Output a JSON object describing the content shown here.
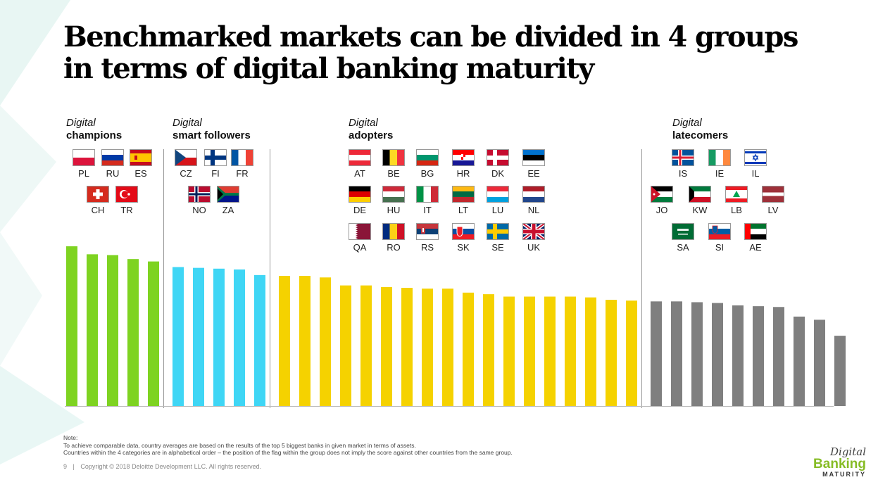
{
  "title_line1": "Benchmarked markets can be divided in 4 groups",
  "title_line2": "in terms of digital banking maturity",
  "groups": [
    {
      "italic": "Digital",
      "name": "champions",
      "color": "#7ed321",
      "flags": [
        "PL",
        "RU",
        "ES",
        "CH",
        "TR"
      ]
    },
    {
      "italic": "Digital",
      "name": "smart followers",
      "color": "#3fd6f5",
      "flags": [
        "CZ",
        "FI",
        "FR",
        "NO",
        "ZA"
      ]
    },
    {
      "italic": "Digital",
      "name": "adopters",
      "color": "#f5d200",
      "flags": [
        "AT",
        "BE",
        "BG",
        "HR",
        "DK",
        "EE",
        "DE",
        "HU",
        "IT",
        "LT",
        "LU",
        "NL",
        "QA",
        "RO",
        "RS",
        "SK",
        "SE",
        "UK"
      ]
    },
    {
      "italic": "Digital",
      "name": "latecomers",
      "color": "#7f7f7f",
      "flags": [
        "IS",
        "IE",
        "IL",
        "JO",
        "KW",
        "LB",
        "LV",
        "SA",
        "SI",
        "AE"
      ]
    }
  ],
  "chart_data": {
    "type": "bar",
    "title": "",
    "xlabel": "",
    "ylabel": "",
    "ylim": [
      0,
      100
    ],
    "grid": false,
    "series": [
      {
        "values": [
          100,
          95,
          94.5,
          92,
          90.5
        ]
      },
      {
        "values": [
          87,
          86.5,
          86,
          85.5,
          82
        ]
      },
      {
        "values": [
          81.5,
          81.5,
          80.5,
          75.5,
          75.5,
          74.5,
          74,
          73.5,
          73.5,
          71,
          70,
          68.5,
          68.5,
          68.5,
          68.5,
          68,
          66.5,
          66
        ]
      },
      {
        "values": [
          65.5,
          65.5,
          65,
          64.5,
          63,
          62.5,
          62,
          56,
          54,
          44
        ]
      }
    ]
  },
  "note": {
    "label": "Note:",
    "line1": "To achieve comparable data, country averages are based on the results of the top 5 biggest banks in given market in terms of assets.",
    "line2": "Countries within the 4 categories are in alphabetical order – the position of the flag within the group does not imply the score against other countries from the same group."
  },
  "footer": {
    "page": "9",
    "sep": "|",
    "copyright": "Copyright © 2018 Deloitte Development LLC. All rights reserved."
  },
  "logo": {
    "line1": "Digital",
    "line2": "Banking",
    "line3": "MATURITY"
  }
}
